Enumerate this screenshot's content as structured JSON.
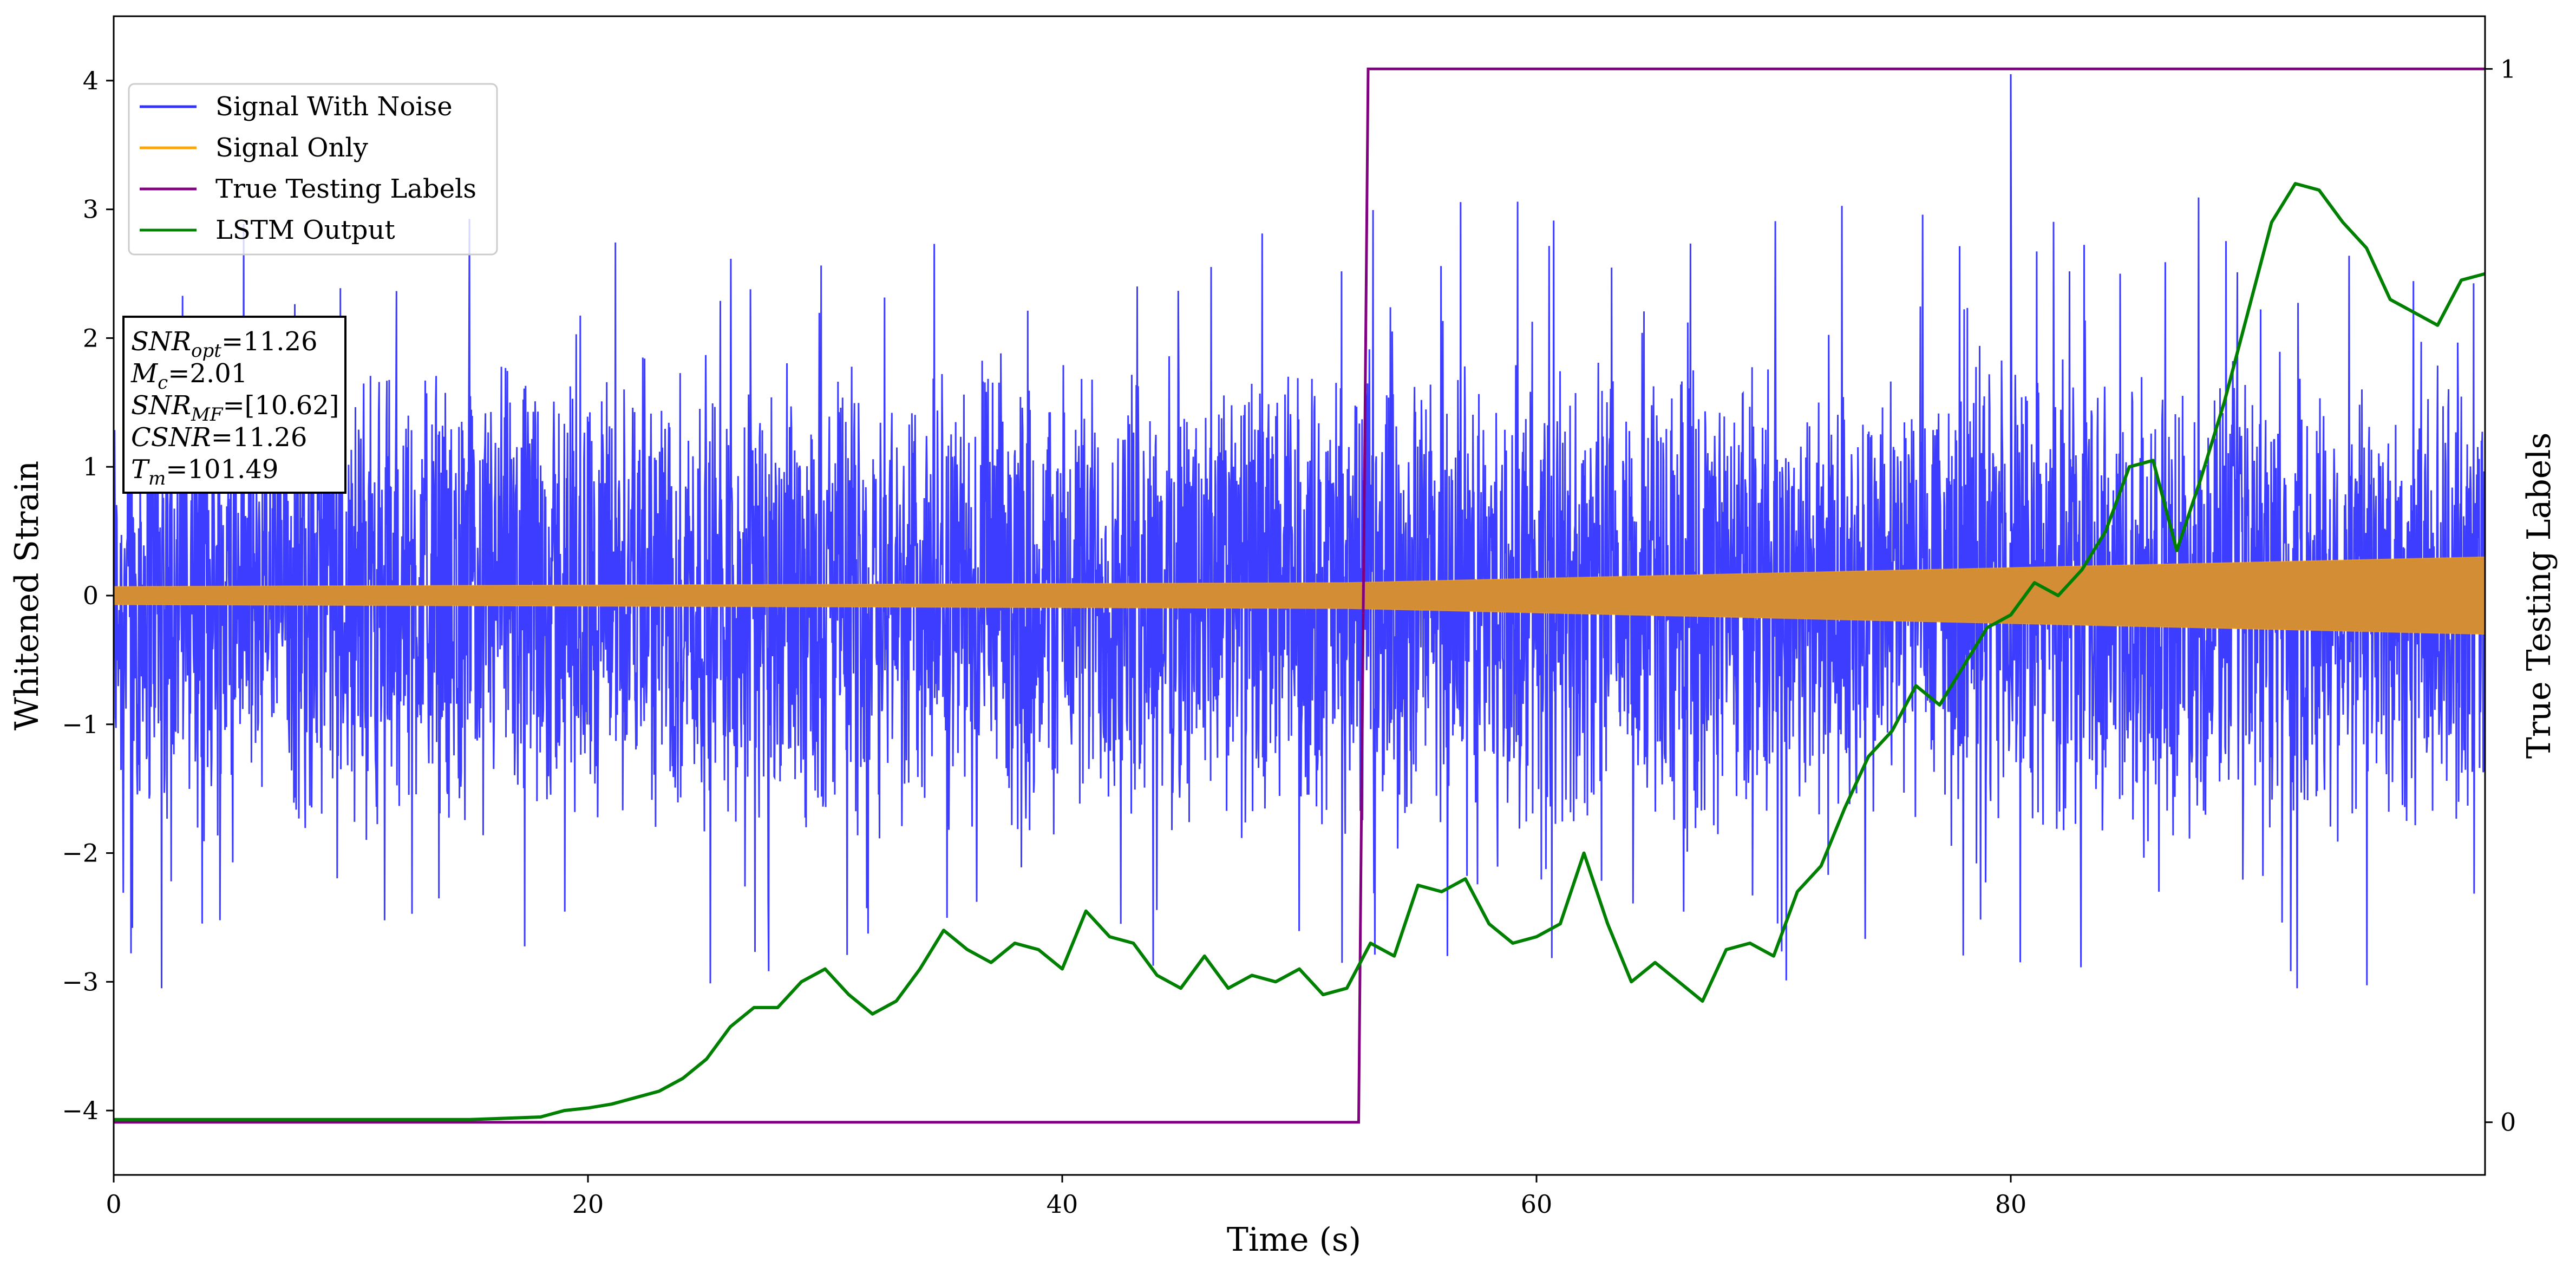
{
  "chart_data": {
    "type": "line",
    "xlabel": "Time (s)",
    "ylabel": "Whitened Strain",
    "ylabel_right": "True Testing Labels",
    "xlim": [
      0,
      100
    ],
    "ylim": [
      -4.5,
      4.5
    ],
    "ylim_right": [
      -0.05,
      1.05
    ],
    "xticks": [
      0,
      20,
      40,
      60,
      80
    ],
    "yticks": [
      -4,
      -3,
      -2,
      -1,
      0,
      1,
      2,
      3,
      4
    ],
    "yticks_right": [
      0,
      1
    ],
    "grid": false,
    "legend_position": "upper left",
    "legend": [
      {
        "name": "Signal With Noise",
        "color": "#3333ff"
      },
      {
        "name": "Signal Only",
        "color": "#ffa500"
      },
      {
        "name": "True Testing Labels",
        "color": "#800080"
      },
      {
        "name": "LSTM Output",
        "color": "#008000"
      }
    ],
    "annotation_lines": [
      {
        "var": "SNR",
        "sub": "opt",
        "value": "=11.26"
      },
      {
        "var": "M",
        "sub": "c",
        "value": "=2.01"
      },
      {
        "var": "SNR",
        "sub": "MF",
        "value": "=[10.62]"
      },
      {
        "var": "CSNR",
        "sub": "",
        "value": "=11.26"
      },
      {
        "var": "T",
        "sub": "m",
        "value": "=101.49"
      }
    ],
    "series": [
      {
        "name": "Signal With Noise",
        "color": "#3333ff",
        "description_values": {
          "envelope_low": -2.0,
          "envelope_high": 2.1,
          "max_spike": 4.05,
          "min_spike": -3.05
        }
      },
      {
        "name": "Signal Only",
        "color": "#ffa500",
        "amplitude": {
          "x": [
            0,
            52,
            100
          ],
          "values": [
            0.07,
            0.1,
            0.3
          ]
        }
      },
      {
        "name": "True Testing Labels",
        "color": "#800080",
        "axis": "right",
        "x": [
          0,
          52.5,
          52.9,
          100
        ],
        "values": [
          0,
          0,
          1,
          1
        ]
      },
      {
        "name": "LSTM Output",
        "color": "#008000",
        "axis": "left",
        "x": [
          0,
          15,
          18,
          19,
          20,
          21,
          22,
          23,
          24,
          25,
          26,
          27,
          28,
          29,
          30,
          31,
          32,
          33,
          34,
          35,
          36,
          37,
          38,
          39,
          40,
          41,
          42,
          43,
          44,
          45,
          46,
          47,
          48,
          49,
          50,
          51,
          52,
          53,
          54,
          55,
          56,
          57,
          58,
          59,
          60,
          61,
          62,
          63,
          64,
          65,
          66,
          67,
          68,
          69,
          70,
          71,
          72,
          73,
          74,
          75,
          76,
          77,
          78,
          79,
          80,
          81,
          82,
          83,
          84,
          85,
          86,
          87,
          88,
          89,
          90,
          91,
          92,
          93,
          94,
          95,
          96,
          97,
          98,
          99,
          100
        ],
        "values": [
          -4.07,
          -4.07,
          -4.05,
          -4.0,
          -3.98,
          -3.95,
          -3.9,
          -3.85,
          -3.75,
          -3.6,
          -3.35,
          -3.2,
          -3.2,
          -3.0,
          -2.9,
          -3.1,
          -3.25,
          -3.15,
          -2.9,
          -2.6,
          -2.75,
          -2.85,
          -2.7,
          -2.75,
          -2.9,
          -2.45,
          -2.65,
          -2.7,
          -2.95,
          -3.05,
          -2.8,
          -3.05,
          -2.95,
          -3.0,
          -2.9,
          -3.1,
          -3.05,
          -2.7,
          -2.8,
          -2.25,
          -2.3,
          -2.2,
          -2.55,
          -2.7,
          -2.65,
          -2.55,
          -2.0,
          -2.55,
          -3.0,
          -2.85,
          -3.0,
          -3.15,
          -2.75,
          -2.7,
          -2.8,
          -2.3,
          -2.1,
          -1.65,
          -1.25,
          -1.05,
          -0.7,
          -0.85,
          -0.55,
          -0.25,
          -0.15,
          0.1,
          0.0,
          0.2,
          0.5,
          1.0,
          1.05,
          0.35,
          0.9,
          1.5,
          2.2,
          2.9,
          3.2,
          3.15,
          2.9,
          2.7,
          2.3,
          2.2,
          2.1,
          2.45,
          2.5
        ]
      }
    ]
  }
}
